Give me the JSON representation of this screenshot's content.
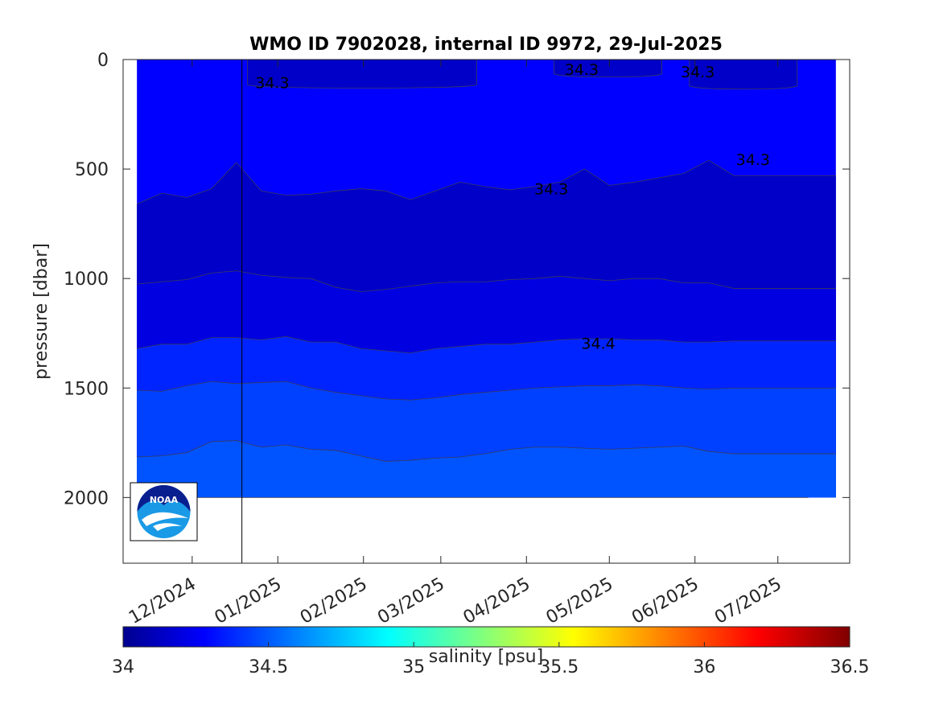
{
  "chart_data": {
    "type": "heatmap",
    "subtype": "filled-contour section",
    "title": "WMO ID 7902028, internal ID 9972, 29-Jul-2025",
    "ylabel": "pressure [dbar]",
    "y_reversed": true,
    "ylim": [
      0,
      2300
    ],
    "y_ticks": [
      0,
      500,
      1000,
      1500,
      2000
    ],
    "y_tick_labels": [
      "0",
      "500",
      "1000",
      "1500",
      "2000"
    ],
    "x_ticks": [
      {
        "date": "2024-12-01",
        "label": "12/2024"
      },
      {
        "date": "2025-01-01",
        "label": "01/2025"
      },
      {
        "date": "2025-02-01",
        "label": "02/2025"
      },
      {
        "date": "2025-03-01",
        "label": "03/2025"
      },
      {
        "date": "2025-04-01",
        "label": "04/2025"
      },
      {
        "date": "2025-05-01",
        "label": "05/2025"
      },
      {
        "date": "2025-06-01",
        "label": "06/2025"
      },
      {
        "date": "2025-07-01",
        "label": "07/2025"
      }
    ],
    "xlim": [
      "2024-11-06",
      "2025-07-27"
    ],
    "data_extent": {
      "x_start": "2024-11-11",
      "x_end": "2025-07-22",
      "max_pressure": 2000
    },
    "deployment_marker_date": "2024-12-19",
    "colorbar": {
      "label": "salinity [psu]",
      "range": [
        34,
        36.5
      ],
      "ticks": [
        34,
        34.5,
        35,
        35.5,
        36,
        36.5
      ],
      "tick_labels": [
        "34",
        "34.5",
        "35",
        "35.5",
        "36",
        "36.5"
      ],
      "colormap": "jet"
    },
    "contour_labels": [
      {
        "text": "34.3",
        "date": "2024-12-30",
        "pressure": 105
      },
      {
        "text": "34.3",
        "date": "2025-04-21",
        "pressure": 45
      },
      {
        "text": "34.3",
        "date": "2025-06-02",
        "pressure": 55
      },
      {
        "text": "34.3",
        "date": "2025-04-10",
        "pressure": 590
      },
      {
        "text": "34.3",
        "date": "2025-06-22",
        "pressure": 455
      },
      {
        "text": "34.4",
        "date": "2025-04-27",
        "pressure": 1295
      }
    ],
    "dates": [
      "2024-11-11",
      "2024-11-20",
      "2024-11-29",
      "2024-12-08",
      "2024-12-17",
      "2024-12-26",
      "2025-01-04",
      "2025-01-13",
      "2025-01-22",
      "2025-01-31",
      "2025-02-09",
      "2025-02-18",
      "2025-02-27",
      "2025-03-08",
      "2025-03-17",
      "2025-03-26",
      "2025-04-04",
      "2025-04-13",
      "2025-04-22",
      "2025-05-01",
      "2025-05-10",
      "2025-05-19",
      "2025-05-28",
      "2025-06-06",
      "2025-06-15",
      "2025-06-24",
      "2025-07-03",
      "2025-07-12",
      "2025-07-22"
    ],
    "levels": [
      {
        "value": 34.25,
        "color": "#0000c8",
        "top_series": "c_343"
      },
      {
        "value": 34.35,
        "color": "#0000e0",
        "top_series": "c_435"
      },
      {
        "value": 34.45,
        "color": "#0024ff",
        "top_series": "c_440"
      },
      {
        "value": 34.55,
        "color": "#0040ff",
        "top_series": "c_445"
      },
      {
        "value": 34.65,
        "color": "#0054ff",
        "top_series": "c_450"
      },
      {
        "value": 34.75,
        "color": "#0070ff",
        "top_series": "c_455"
      }
    ],
    "base_fill": {
      "value": 34.35,
      "color": "#0000ff"
    },
    "contours": {
      "c_343": [
        660,
        610,
        630,
        590,
        470,
        600,
        620,
        615,
        600,
        590,
        600,
        640,
        600,
        560,
        580,
        595,
        580,
        560,
        500,
        575,
        560,
        540,
        520,
        460,
        530,
        530,
        530,
        530,
        530
      ],
      "c_435": [
        1025,
        1015,
        1005,
        975,
        965,
        985,
        995,
        1000,
        1040,
        1060,
        1050,
        1035,
        1020,
        1015,
        1015,
        1005,
        1000,
        990,
        1000,
        1010,
        1000,
        1000,
        1020,
        1020,
        1045,
        1045,
        1045,
        1045,
        1045
      ],
      "c_440": [
        1320,
        1300,
        1300,
        1270,
        1270,
        1280,
        1265,
        1290,
        1290,
        1320,
        1330,
        1340,
        1320,
        1310,
        1300,
        1300,
        1290,
        1280,
        1275,
        1275,
        1280,
        1280,
        1290,
        1290,
        1285,
        1285,
        1285,
        1285,
        1285
      ],
      "c_445": [
        1510,
        1515,
        1490,
        1470,
        1480,
        1475,
        1470,
        1500,
        1520,
        1535,
        1550,
        1555,
        1545,
        1530,
        1520,
        1510,
        1500,
        1495,
        1490,
        1490,
        1485,
        1490,
        1500,
        1505,
        1500,
        1500,
        1500,
        1500,
        1500
      ],
      "c_450": [
        1815,
        1810,
        1795,
        1745,
        1740,
        1770,
        1760,
        1780,
        1785,
        1810,
        1835,
        1830,
        1820,
        1815,
        1800,
        1780,
        1770,
        1770,
        1775,
        1780,
        1775,
        1770,
        1765,
        1790,
        1800,
        1800,
        1800,
        1800,
        1800
      ],
      "c_455": [
        2000,
        2000,
        2000,
        2000,
        2000,
        2000,
        2000,
        2000,
        2000,
        2000,
        2000,
        2000,
        2000,
        2000,
        2000,
        2000,
        2000,
        2000,
        2000,
        2000,
        2000,
        2000,
        2000,
        2000,
        2000,
        2000,
        2000,
        2000,
        2000
      ]
    },
    "surface_patches": [
      {
        "date_start": "2024-12-21",
        "date_end": "2025-03-14",
        "top": 0,
        "bottom": 130
      },
      {
        "date_start": "2025-04-11",
        "date_end": "2025-05-20",
        "top": 0,
        "bottom": 80
      },
      {
        "date_start": "2025-05-30",
        "date_end": "2025-07-08",
        "top": 0,
        "bottom": 135
      }
    ],
    "logo": {
      "text": "NOAA"
    }
  }
}
